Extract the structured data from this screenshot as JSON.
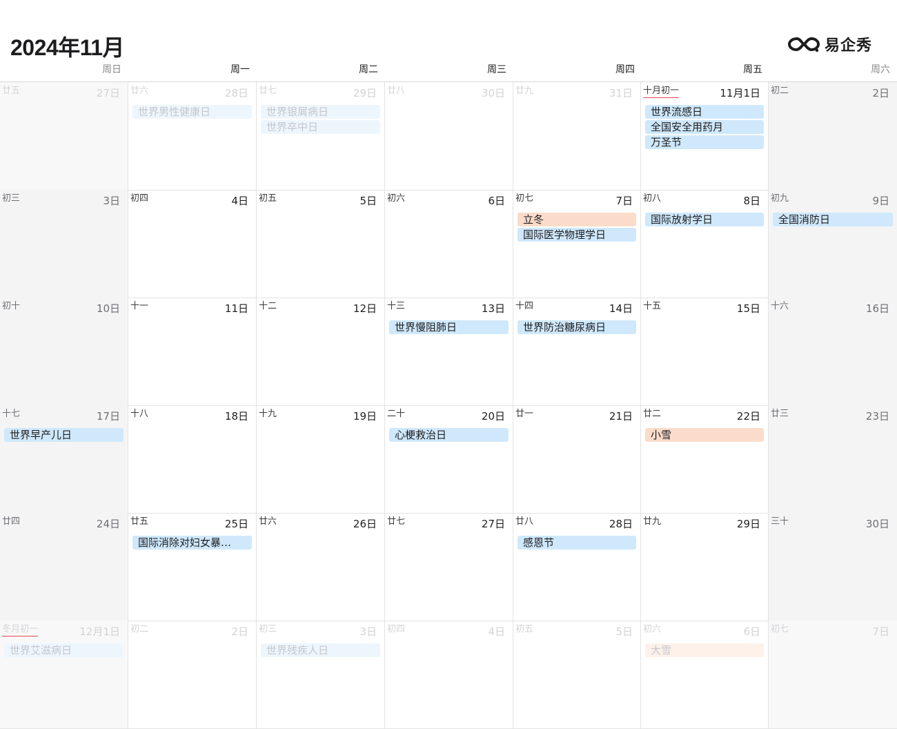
{
  "header": {
    "title": "2024年11月",
    "brand": "易企秀",
    "brand_icon": "infinity-logo-icon"
  },
  "weekdays": [
    "周日",
    "周一",
    "周二",
    "周三",
    "周四",
    "周五",
    "周六"
  ],
  "colors": {
    "holiday_event": "#cfe8fb",
    "solar_term_event": "#fbdcca",
    "weekend_bg": "#f4f4f5",
    "month_start_underline": "#e5484d"
  },
  "weeks": [
    [
      {
        "lunar": "廿五",
        "date": "27日",
        "faded": true,
        "events": []
      },
      {
        "lunar": "廿六",
        "date": "28日",
        "faded": true,
        "events": [
          {
            "title": "世界男性健康日",
            "kind": "holiday"
          }
        ]
      },
      {
        "lunar": "廿七",
        "date": "29日",
        "faded": true,
        "events": [
          {
            "title": "世界银屑病日",
            "kind": "holiday"
          },
          {
            "title": "世界卒中日",
            "kind": "holiday"
          }
        ]
      },
      {
        "lunar": "廿八",
        "date": "30日",
        "faded": true,
        "events": []
      },
      {
        "lunar": "廿九",
        "date": "31日",
        "faded": true,
        "events": []
      },
      {
        "lunar": "十月初一",
        "date": "11月1日",
        "faded": false,
        "month_start": true,
        "events": [
          {
            "title": "世界流感日",
            "kind": "holiday"
          },
          {
            "title": "全国安全用药月",
            "kind": "holiday"
          },
          {
            "title": "万圣节",
            "kind": "holiday"
          }
        ]
      },
      {
        "lunar": "初二",
        "date": "2日",
        "faded": false,
        "events": []
      }
    ],
    [
      {
        "lunar": "初三",
        "date": "3日",
        "faded": false,
        "events": []
      },
      {
        "lunar": "初四",
        "date": "4日",
        "faded": false,
        "events": []
      },
      {
        "lunar": "初五",
        "date": "5日",
        "faded": false,
        "events": []
      },
      {
        "lunar": "初六",
        "date": "6日",
        "faded": false,
        "events": []
      },
      {
        "lunar": "初七",
        "date": "7日",
        "faded": false,
        "events": [
          {
            "title": "立冬",
            "kind": "term"
          },
          {
            "title": "国际医学物理学日",
            "kind": "holiday"
          }
        ]
      },
      {
        "lunar": "初八",
        "date": "8日",
        "faded": false,
        "events": [
          {
            "title": "国际放射学日",
            "kind": "holiday"
          }
        ]
      },
      {
        "lunar": "初九",
        "date": "9日",
        "faded": false,
        "events": [
          {
            "title": "全国消防日",
            "kind": "holiday"
          }
        ]
      }
    ],
    [
      {
        "lunar": "初十",
        "date": "10日",
        "faded": false,
        "events": []
      },
      {
        "lunar": "十一",
        "date": "11日",
        "faded": false,
        "events": []
      },
      {
        "lunar": "十二",
        "date": "12日",
        "faded": false,
        "events": []
      },
      {
        "lunar": "十三",
        "date": "13日",
        "faded": false,
        "events": [
          {
            "title": "世界慢阻肺日",
            "kind": "holiday"
          }
        ]
      },
      {
        "lunar": "十四",
        "date": "14日",
        "faded": false,
        "events": [
          {
            "title": "世界防治糖尿病日",
            "kind": "holiday"
          }
        ]
      },
      {
        "lunar": "十五",
        "date": "15日",
        "faded": false,
        "events": []
      },
      {
        "lunar": "十六",
        "date": "16日",
        "faded": false,
        "events": []
      }
    ],
    [
      {
        "lunar": "十七",
        "date": "17日",
        "faded": false,
        "events": [
          {
            "title": "世界早产儿日",
            "kind": "holiday"
          }
        ]
      },
      {
        "lunar": "十八",
        "date": "18日",
        "faded": false,
        "events": []
      },
      {
        "lunar": "十九",
        "date": "19日",
        "faded": false,
        "events": []
      },
      {
        "lunar": "二十",
        "date": "20日",
        "faded": false,
        "events": [
          {
            "title": "心梗救治日",
            "kind": "holiday"
          }
        ]
      },
      {
        "lunar": "廿一",
        "date": "21日",
        "faded": false,
        "events": []
      },
      {
        "lunar": "廿二",
        "date": "22日",
        "faded": false,
        "events": [
          {
            "title": "小雪",
            "kind": "term"
          }
        ]
      },
      {
        "lunar": "廿三",
        "date": "23日",
        "faded": false,
        "events": []
      }
    ],
    [
      {
        "lunar": "廿四",
        "date": "24日",
        "faded": false,
        "events": []
      },
      {
        "lunar": "廿五",
        "date": "25日",
        "faded": false,
        "events": [
          {
            "title": "国际消除对妇女暴…",
            "kind": "holiday"
          }
        ]
      },
      {
        "lunar": "廿六",
        "date": "26日",
        "faded": false,
        "events": []
      },
      {
        "lunar": "廿七",
        "date": "27日",
        "faded": false,
        "events": []
      },
      {
        "lunar": "廿八",
        "date": "28日",
        "faded": false,
        "events": [
          {
            "title": "感恩节",
            "kind": "holiday"
          }
        ]
      },
      {
        "lunar": "廿九",
        "date": "29日",
        "faded": false,
        "events": []
      },
      {
        "lunar": "三十",
        "date": "30日",
        "faded": false,
        "events": []
      }
    ],
    [
      {
        "lunar": "冬月初一",
        "date": "12月1日",
        "faded": true,
        "month_start": true,
        "events": [
          {
            "title": "世界艾滋病日",
            "kind": "holiday"
          }
        ]
      },
      {
        "lunar": "初二",
        "date": "2日",
        "faded": true,
        "events": []
      },
      {
        "lunar": "初三",
        "date": "3日",
        "faded": true,
        "events": [
          {
            "title": "世界残疾人日",
            "kind": "holiday"
          }
        ]
      },
      {
        "lunar": "初四",
        "date": "4日",
        "faded": true,
        "events": []
      },
      {
        "lunar": "初五",
        "date": "5日",
        "faded": true,
        "events": []
      },
      {
        "lunar": "初六",
        "date": "6日",
        "faded": true,
        "events": [
          {
            "title": "大雪",
            "kind": "term"
          }
        ]
      },
      {
        "lunar": "初七",
        "date": "7日",
        "faded": true,
        "events": []
      }
    ]
  ]
}
